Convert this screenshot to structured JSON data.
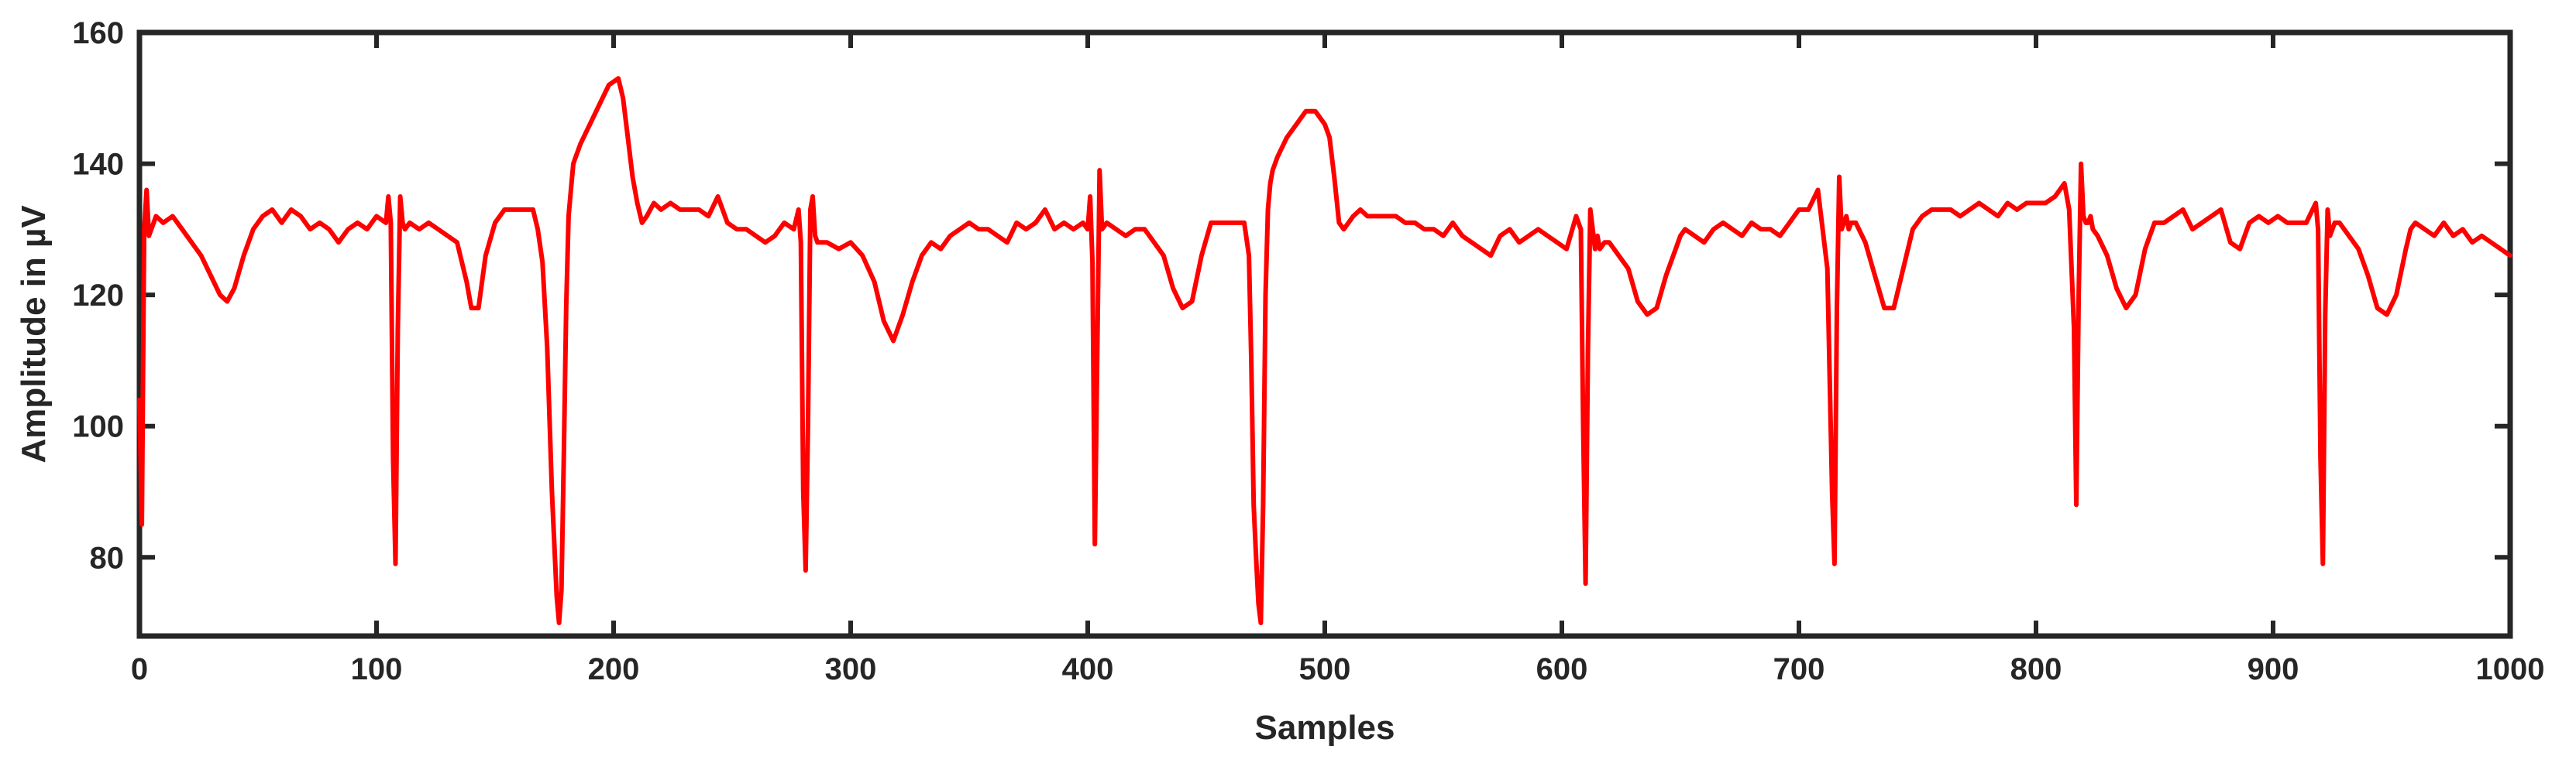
{
  "colors": {
    "series": "#ff0000",
    "axes": "#262626",
    "background": "#ffffff"
  },
  "chart_data": {
    "type": "line",
    "title": "",
    "xlabel": "Samples",
    "ylabel": "Amplitude in µV",
    "xlim": [
      0,
      1000
    ],
    "ylim": [
      68,
      160
    ],
    "xticks": [
      0,
      100,
      200,
      300,
      400,
      500,
      600,
      700,
      800,
      900,
      1000
    ],
    "yticks": [
      80,
      100,
      120,
      140,
      160
    ],
    "grid": false,
    "legend": "none",
    "series": [
      {
        "color": "#ff0000",
        "x": [
          0,
          1,
          2,
          3,
          4,
          5,
          7,
          10,
          14,
          18,
          22,
          26,
          30,
          34,
          37,
          40,
          44,
          48,
          52,
          56,
          60,
          64,
          68,
          72,
          76,
          80,
          84,
          88,
          92,
          96,
          100,
          104,
          105,
          106,
          107,
          108,
          109,
          110,
          111,
          112,
          114,
          118,
          122,
          126,
          130,
          134,
          138,
          140,
          143,
          146,
          150,
          154,
          158,
          162,
          166,
          168,
          170,
          172,
          174,
          176,
          177,
          178,
          179,
          180,
          181,
          182,
          183,
          184,
          186,
          190,
          194,
          198,
          202,
          204,
          206,
          208,
          210,
          212,
          214,
          217,
          220,
          224,
          228,
          232,
          236,
          240,
          244,
          248,
          252,
          256,
          260,
          264,
          268,
          272,
          276,
          278,
          279,
          280,
          281,
          282,
          283,
          284,
          285,
          286,
          290,
          295,
          300,
          305,
          310,
          314,
          318,
          322,
          326,
          330,
          334,
          338,
          342,
          346,
          350,
          354,
          358,
          362,
          366,
          370,
          374,
          378,
          382,
          386,
          390,
          394,
          398,
          400,
          401,
          402,
          403,
          404,
          405,
          406,
          408,
          412,
          416,
          420,
          424,
          428,
          432,
          436,
          440,
          444,
          448,
          452,
          456,
          460,
          463,
          466,
          468,
          469,
          470,
          471,
          472,
          473,
          474,
          475,
          476,
          477,
          478,
          480,
          484,
          488,
          492,
          496,
          500,
          502,
          504,
          506,
          508,
          510,
          512,
          515,
          518,
          522,
          526,
          530,
          534,
          538,
          542,
          546,
          550,
          554,
          558,
          562,
          566,
          570,
          574,
          578,
          582,
          586,
          590,
          594,
          598,
          602,
          606,
          608,
          609,
          610,
          611,
          612,
          613,
          614,
          615,
          616,
          618,
          620,
          624,
          628,
          632,
          636,
          640,
          644,
          648,
          650,
          652,
          656,
          660,
          664,
          668,
          672,
          676,
          680,
          684,
          688,
          692,
          696,
          700,
          704,
          708,
          712,
          714,
          715,
          716,
          717,
          718,
          719,
          720,
          721,
          722,
          724,
          728,
          732,
          736,
          740,
          744,
          748,
          752,
          756,
          760,
          764,
          768,
          772,
          776,
          780,
          784,
          788,
          792,
          796,
          800,
          804,
          808,
          812,
          814,
          816,
          817,
          818,
          819,
          820,
          821,
          822,
          823,
          824,
          826,
          830,
          834,
          838,
          842,
          846,
          850,
          854,
          858,
          862,
          866,
          870,
          874,
          878,
          882,
          886,
          890,
          894,
          898,
          902,
          906,
          910,
          914,
          918,
          919,
          920,
          921,
          922,
          923,
          924,
          925,
          926,
          928,
          932,
          936,
          940,
          944,
          948,
          952,
          956,
          958,
          960,
          964,
          968,
          972,
          976,
          980,
          984,
          988,
          992,
          996,
          1000
        ],
        "y": [
          104,
          85,
          130,
          136,
          129,
          130,
          132,
          131,
          132,
          130,
          128,
          126,
          123,
          120,
          119,
          121,
          126,
          130,
          132,
          133,
          131,
          133,
          132,
          130,
          131,
          130,
          128,
          130,
          131,
          130,
          132,
          131,
          135,
          131,
          95,
          79,
          115,
          135,
          131,
          130,
          131,
          130,
          131,
          130,
          129,
          128,
          122,
          118,
          118,
          126,
          131,
          133,
          133,
          133,
          133,
          130,
          125,
          112,
          90,
          74,
          70,
          75,
          95,
          118,
          132,
          136,
          140,
          141,
          143,
          146,
          149,
          152,
          153,
          150,
          144,
          138,
          134,
          131,
          132,
          134,
          133,
          134,
          133,
          133,
          133,
          132,
          135,
          131,
          130,
          130,
          129,
          128,
          129,
          131,
          130,
          133,
          128,
          90,
          78,
          100,
          133,
          135,
          129,
          128,
          128,
          127,
          128,
          126,
          122,
          116,
          113,
          117,
          122,
          126,
          128,
          127,
          129,
          130,
          131,
          130,
          130,
          129,
          128,
          131,
          130,
          131,
          133,
          130,
          131,
          130,
          131,
          130,
          135,
          125,
          82,
          110,
          139,
          130,
          131,
          130,
          129,
          130,
          130,
          128,
          126,
          121,
          118,
          119,
          126,
          131,
          131,
          131,
          131,
          131,
          126,
          110,
          88,
          80,
          73,
          70,
          88,
          120,
          133,
          137,
          139,
          141,
          144,
          146,
          148,
          148,
          146,
          144,
          138,
          131,
          130,
          131,
          132,
          133,
          132,
          132,
          132,
          132,
          131,
          131,
          130,
          130,
          129,
          131,
          129,
          128,
          127,
          126,
          129,
          130,
          128,
          129,
          130,
          129,
          128,
          127,
          132,
          130,
          100,
          76,
          112,
          133,
          130,
          127,
          129,
          127,
          128,
          128,
          126,
          124,
          119,
          117,
          118,
          123,
          127,
          129,
          130,
          129,
          128,
          130,
          131,
          130,
          129,
          131,
          130,
          130,
          129,
          131,
          133,
          133,
          136,
          124,
          90,
          79,
          118,
          138,
          130,
          131,
          132,
          130,
          131,
          131,
          128,
          123,
          118,
          118,
          124,
          130,
          132,
          133,
          133,
          133,
          132,
          133,
          134,
          133,
          132,
          134,
          133,
          134,
          134,
          134,
          135,
          137,
          133,
          115,
          88,
          120,
          140,
          132,
          131,
          131,
          132,
          130,
          129,
          126,
          121,
          118,
          120,
          127,
          131,
          131,
          132,
          133,
          130,
          131,
          132,
          133,
          128,
          127,
          131,
          132,
          131,
          132,
          131,
          131,
          131,
          134,
          130,
          95,
          79,
          117,
          133,
          129,
          130,
          131,
          131,
          129,
          127,
          123,
          118,
          117,
          120,
          127,
          130,
          131,
          130,
          129,
          131,
          129,
          130,
          128,
          129,
          128,
          127,
          126
        ]
      }
    ]
  }
}
